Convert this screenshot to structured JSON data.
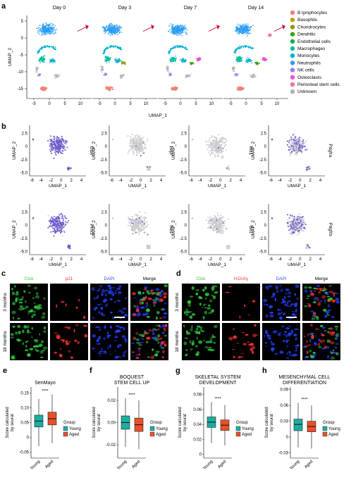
{
  "panels": {
    "a": {
      "label": "a",
      "days": [
        "Day 0",
        "Day 3",
        "Day 7",
        "Day 14"
      ],
      "ylabel": "UMAP_2",
      "xlabel": "UMAP_1",
      "xticks": [
        "-5",
        "0",
        "5",
        "10"
      ],
      "yticks": [
        "5",
        "0",
        "-5",
        "-10",
        "-15"
      ],
      "legend": [
        {
          "name": "B lymphocytes",
          "color": "#f08070"
        },
        {
          "name": "Basophils",
          "color": "#c8a000"
        },
        {
          "name": "Chondrocytes",
          "color": "#8a9a00"
        },
        {
          "name": "Dendritic",
          "color": "#3aa000"
        },
        {
          "name": "Endothelial cells",
          "color": "#00b050"
        },
        {
          "name": "Macrophages",
          "color": "#00b8a0"
        },
        {
          "name": "Monocytes",
          "color": "#00b0d0"
        },
        {
          "name": "Neutrophils",
          "color": "#2a9df4"
        },
        {
          "name": "NK cells",
          "color": "#9a7ae8"
        },
        {
          "name": "Osteoclasts",
          "color": "#f050d0"
        },
        {
          "name": "Periosteal stem cells",
          "color": "#f070a0"
        },
        {
          "name": "Unknown",
          "color": "#b0b0b0"
        }
      ]
    },
    "b": {
      "label": "b",
      "genes_top": [
        "Ctsk",
        "Lepr",
        "Mx1",
        "Pdgfra"
      ],
      "genes_bottom": [
        "Prrx1",
        "Nes",
        "Gli1",
        "Pdgfrb"
      ],
      "xlabel": "UMAP_1",
      "ylabel": "UMAP_2",
      "xticks": [
        "-6",
        "-4",
        "-2",
        "0",
        "2",
        "4"
      ],
      "yticks": [
        "2.5",
        "0",
        "-2.5",
        "-5.0"
      ]
    },
    "c": {
      "label": "c",
      "channels": [
        "Ctsk",
        "p21",
        "DAPI",
        "Merge"
      ],
      "channel_colors": [
        "#2ecc40",
        "#ff3030",
        "#3050ff",
        "#000000"
      ],
      "rows": [
        "3 months",
        "18 months"
      ]
    },
    "d": {
      "label": "d",
      "channels": [
        "Ctsk",
        "H2AXγ",
        "DAPI",
        "Merge"
      ],
      "channel_colors": [
        "#2ecc40",
        "#ff3030",
        "#3050ff",
        "#000000"
      ],
      "rows": [
        "3 months",
        "18 months"
      ]
    },
    "boxplots": [
      {
        "label": "e",
        "title": [
          "SenMayo"
        ],
        "yticks": [
          "0.15",
          "0.10",
          "0.05",
          "0",
          "-0.05"
        ],
        "ymin": -0.07,
        "ymax": 0.17,
        "young": {
          "q1": 0.035,
          "median": 0.055,
          "q3": 0.075,
          "wlo": -0.03,
          "whi": 0.13
        },
        "aged": {
          "q1": 0.042,
          "median": 0.063,
          "q3": 0.085,
          "wlo": -0.02,
          "whi": 0.145
        }
      },
      {
        "label": "f",
        "title": [
          "BOQUEST",
          "STEM CELL UP"
        ],
        "yticks": [
          "0.02",
          "0.00",
          "-0.02"
        ],
        "ymin": -0.032,
        "ymax": 0.032,
        "young": {
          "q1": -0.006,
          "median": 0.0,
          "q3": 0.006,
          "wlo": -0.022,
          "whi": 0.022
        },
        "aged": {
          "q1": -0.008,
          "median": -0.002,
          "q3": 0.004,
          "wlo": -0.024,
          "whi": 0.02
        }
      },
      {
        "label": "g",
        "title": [
          "SKELETAL SYSTEM",
          "DEVELOPMENT"
        ],
        "yticks": [
          "0.08",
          "0.06",
          "0.04",
          "0.02",
          "0"
        ],
        "ymin": -0.005,
        "ymax": 0.09,
        "young": {
          "q1": 0.036,
          "median": 0.043,
          "q3": 0.05,
          "wlo": 0.015,
          "whi": 0.07
        },
        "aged": {
          "q1": 0.032,
          "median": 0.039,
          "q3": 0.046,
          "wlo": 0.012,
          "whi": 0.066
        }
      },
      {
        "label": "h",
        "title": [
          "MESENCHYMAL CELL",
          "DIFFERENTIATION"
        ],
        "yticks": [
          "0.09",
          "0.06",
          "0.03",
          "0",
          "-0.03"
        ],
        "ymin": -0.04,
        "ymax": 0.095,
        "young": {
          "q1": 0.012,
          "median": 0.024,
          "q3": 0.034,
          "wlo": -0.02,
          "whi": 0.065
        },
        "aged": {
          "q1": 0.01,
          "median": 0.02,
          "q3": 0.03,
          "wlo": -0.022,
          "whi": 0.06
        }
      }
    ],
    "box_common": {
      "ylabel": [
        "Score calculated",
        "by seurat"
      ],
      "categories": [
        "Young",
        "Aged"
      ],
      "legend_title": "Group",
      "legend": [
        {
          "name": "Young",
          "color": "#1aaea0"
        },
        {
          "name": "Aged",
          "color": "#e8502a"
        }
      ],
      "significance": "****"
    }
  }
}
